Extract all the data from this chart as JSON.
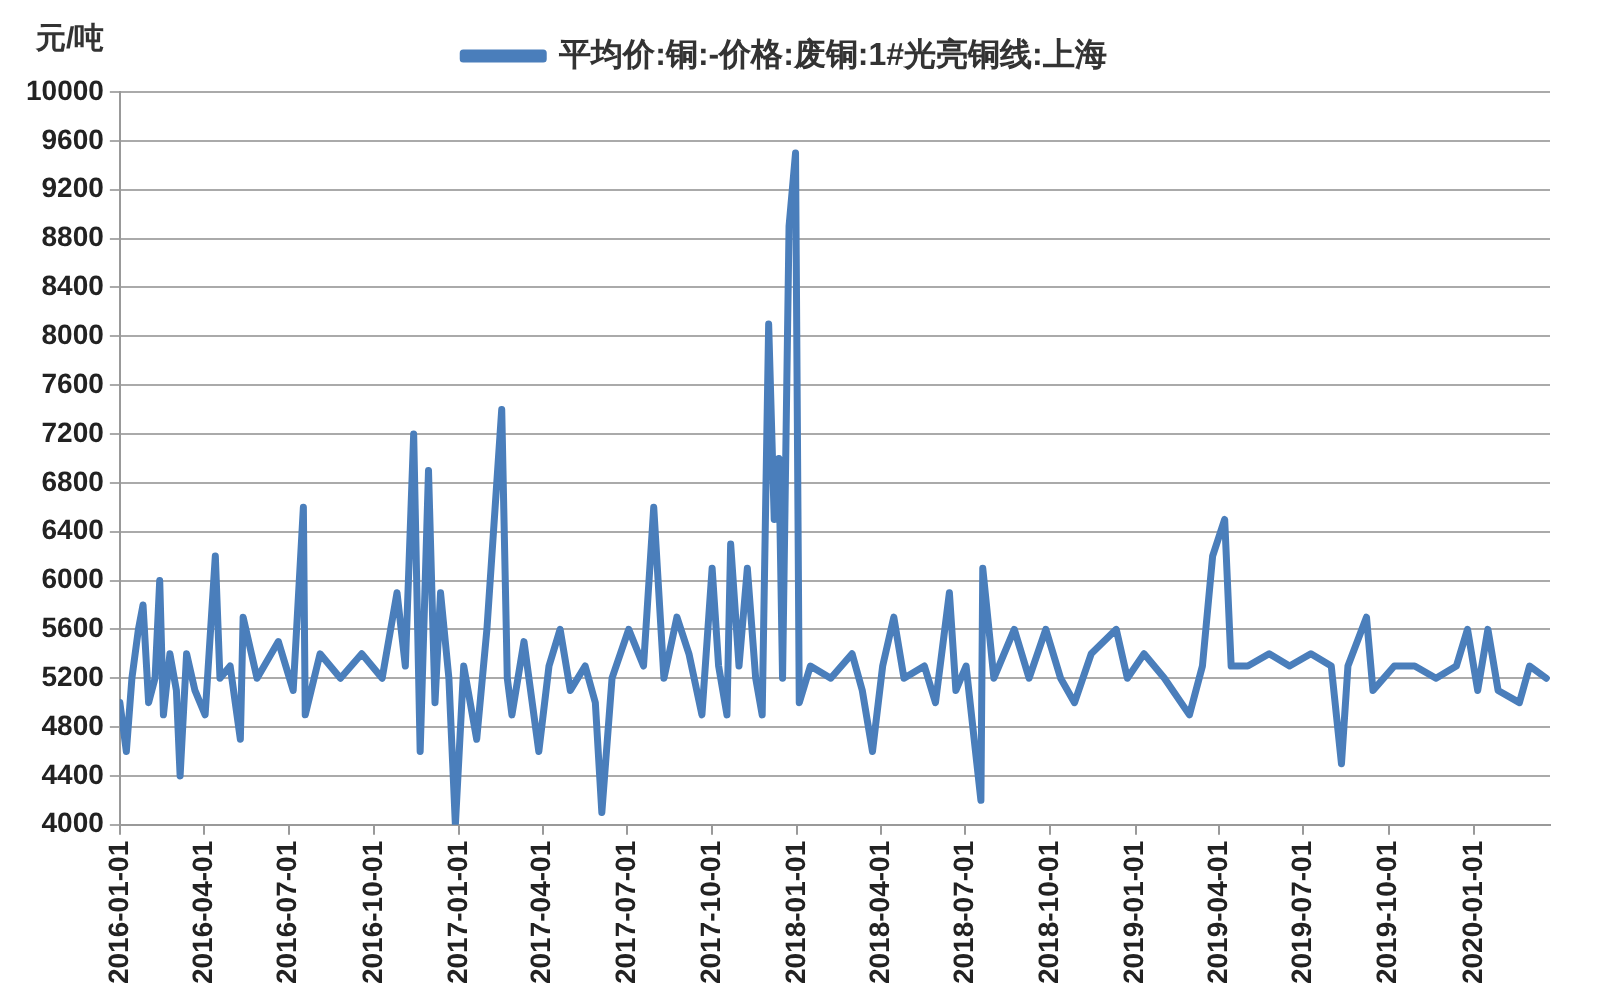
{
  "chart_data": {
    "type": "line",
    "ylabel": "元/吨",
    "legend": "top",
    "grid": "y",
    "marker": "none",
    "line_style": "solid",
    "xlim": [
      "2016-01-01",
      "2020-03-23"
    ],
    "xticks": [
      "2016-01-01",
      "2016-04-01",
      "2016-07-01",
      "2016-10-01",
      "2017-01-01",
      "2017-04-01",
      "2017-07-01",
      "2017-10-01",
      "2018-01-01",
      "2018-04-01",
      "2018-07-01",
      "2018-10-01",
      "2019-01-01",
      "2019-04-01",
      "2019-07-01",
      "2019-10-01",
      "2020-01-01"
    ],
    "ylim": [
      4000,
      10000
    ],
    "yticks": [
      4000,
      4400,
      4800,
      5200,
      5600,
      6000,
      6400,
      6800,
      7200,
      7600,
      8000,
      8400,
      8800,
      9200,
      9600,
      10000
    ],
    "x": [
      "2016-01-01",
      "2016-01-08",
      "2016-01-14",
      "2016-01-21",
      "2016-01-26",
      "2016-02-01",
      "2016-02-08",
      "2016-02-13",
      "2016-02-17",
      "2016-02-24",
      "2016-03-02",
      "2016-03-06",
      "2016-03-13",
      "2016-03-22",
      "2016-04-02",
      "2016-04-13",
      "2016-04-18",
      "2016-04-29",
      "2016-05-10",
      "2016-05-13",
      "2016-05-28",
      "2016-06-20",
      "2016-07-06",
      "2016-07-17",
      "2016-07-19",
      "2016-08-04",
      "2016-08-26",
      "2016-09-18",
      "2016-10-10",
      "2016-10-26",
      "2016-11-04",
      "2016-11-13",
      "2016-11-20",
      "2016-11-29",
      "2016-12-06",
      "2016-12-12",
      "2016-12-21",
      "2016-12-28",
      "2017-01-06",
      "2017-01-20",
      "2017-01-31",
      "2017-02-16",
      "2017-02-22",
      "2017-02-27",
      "2017-03-12",
      "2017-03-28",
      "2017-04-08",
      "2017-04-20",
      "2017-05-01",
      "2017-05-17",
      "2017-05-28",
      "2017-06-04",
      "2017-06-15",
      "2017-07-03",
      "2017-07-19",
      "2017-07-30",
      "2017-08-10",
      "2017-08-24",
      "2017-09-06",
      "2017-09-20",
      "2017-10-01",
      "2017-10-08",
      "2017-10-17",
      "2017-10-21",
      "2017-10-30",
      "2017-11-08",
      "2017-11-17",
      "2017-11-24",
      "2017-12-01",
      "2017-12-07",
      "2017-12-12",
      "2017-12-16",
      "2017-12-23",
      "2017-12-30",
      "2018-01-03",
      "2018-01-15",
      "2018-02-06",
      "2018-03-01",
      "2018-03-12",
      "2018-03-23",
      "2018-04-03",
      "2018-04-15",
      "2018-04-26",
      "2018-05-18",
      "2018-05-30",
      "2018-06-14",
      "2018-06-21",
      "2018-07-02",
      "2018-07-18",
      "2018-07-20",
      "2018-08-01",
      "2018-08-23",
      "2018-09-08",
      "2018-09-26",
      "2018-10-12",
      "2018-10-27",
      "2018-11-14",
      "2018-12-11",
      "2018-12-23",
      "2019-01-10",
      "2019-02-01",
      "2019-02-28",
      "2019-03-14",
      "2019-03-25",
      "2019-04-07",
      "2019-04-14",
      "2019-05-02",
      "2019-05-25",
      "2019-06-16",
      "2019-07-09",
      "2019-07-31",
      "2019-08-11",
      "2019-08-18",
      "2019-09-07",
      "2019-09-14",
      "2019-10-07",
      "2019-10-29",
      "2019-11-21",
      "2019-12-13",
      "2019-12-25",
      "2020-01-05",
      "2020-01-16",
      "2020-01-27",
      "2020-02-19",
      "2020-03-01",
      "2020-03-19"
    ],
    "series": [
      {
        "name": "平均价:铜:-价格:废铜:1#光亮铜线:上海",
        "color": "#4a7ebb",
        "values": [
          5000,
          4600,
          5200,
          5600,
          5800,
          5000,
          5200,
          6000,
          4900,
          5400,
          5100,
          4400,
          5400,
          5100,
          4900,
          6200,
          5200,
          5300,
          4700,
          5700,
          5200,
          5500,
          5100,
          6600,
          4900,
          5400,
          5200,
          5400,
          5200,
          5900,
          5300,
          7200,
          4600,
          6900,
          5000,
          5900,
          5200,
          4000,
          5300,
          4700,
          5600,
          7400,
          5200,
          4900,
          5500,
          4600,
          5300,
          5600,
          5100,
          5300,
          5000,
          4100,
          5200,
          5600,
          5300,
          6600,
          5200,
          5700,
          5400,
          4900,
          6100,
          5300,
          4900,
          6300,
          5300,
          6100,
          5200,
          4900,
          8100,
          6500,
          7000,
          5200,
          8900,
          9500,
          5000,
          5300,
          5200,
          5400,
          5100,
          4600,
          5300,
          5700,
          5200,
          5300,
          5000,
          5900,
          5100,
          5300,
          4200,
          6100,
          5200,
          5600,
          5200,
          5600,
          5200,
          5000,
          5400,
          5600,
          5200,
          5400,
          5200,
          4900,
          5300,
          6200,
          6500,
          5300,
          5300,
          5400,
          5300,
          5400,
          5300,
          4500,
          5300,
          5700,
          5100,
          5300,
          5300,
          5200,
          5300,
          5600,
          5100,
          5600,
          5100,
          5000,
          5300,
          5200
        ]
      }
    ]
  }
}
